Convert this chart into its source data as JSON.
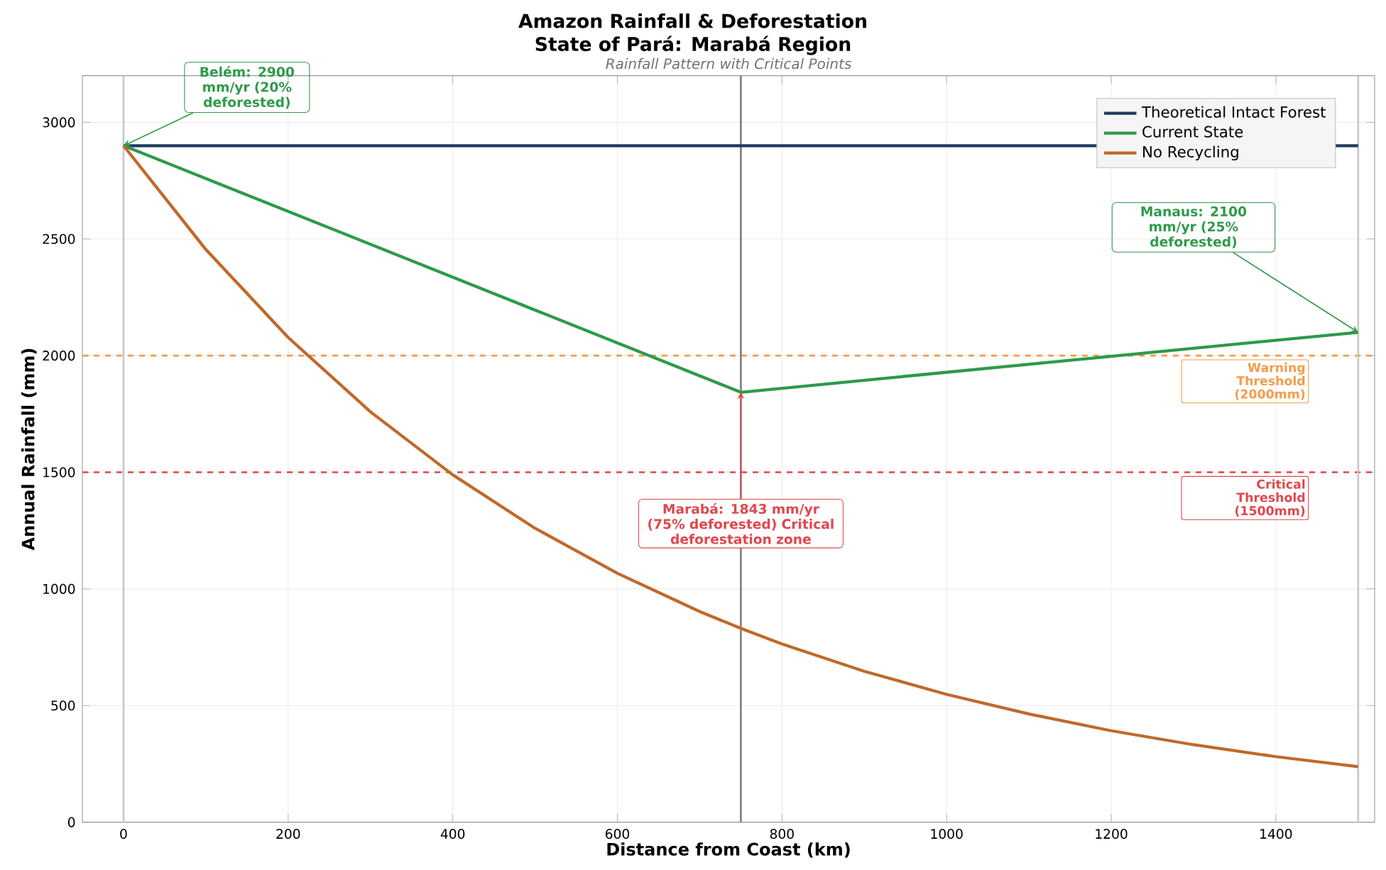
{
  "chart_data": {
    "type": "line",
    "title": "Amazon Rainfall & Deforestation",
    "subtitle": "State of Pará: Marabá Region",
    "xlabel": "Distance from Coast (km)",
    "ylabel": "Annual Rainfall (mm)",
    "annotations": [
      "Rainfall Pattern with Critical Points",
      {
        "text": "Belém: 2900 mm/yr (20% deforested)",
        "x": 0,
        "y": 2900
      },
      {
        "text": "Manaus: 2100 mm/yr (25% deforested)",
        "x": 1500,
        "y": 2100
      },
      {
        "text": "Marabá: 1843 mm/yr (75% deforested) Critical deforestation zone",
        "x": 750,
        "y": 1843
      }
    ],
    "series": [
      {
        "name": "Theoretical Intact Forest",
        "color": "#1f3a5f",
        "x": [
          0,
          1500
        ],
        "values": [
          2900,
          2900
        ]
      },
      {
        "name": "Current State",
        "color": "#2e9a4a",
        "x": [
          0,
          750,
          1500
        ],
        "values": [
          2900,
          1843,
          2100
        ]
      },
      {
        "name": "No Recycling",
        "color": "#c0692a",
        "x": [
          0,
          100,
          200,
          300,
          400,
          500,
          600,
          700,
          750,
          800,
          900,
          1000,
          1100,
          1200,
          1300,
          1400,
          1500
        ],
        "values": [
          2900,
          2455,
          2078,
          1759,
          1489,
          1260,
          1067,
          903,
          831,
          764,
          647,
          548,
          464,
          392,
          332,
          281,
          238
        ]
      }
    ],
    "ref_lines": [
      {
        "axis": "y",
        "value": 2000,
        "label": "Warning Threshold (2000mm)",
        "color": "#f39c4a",
        "line_style": "dashed"
      },
      {
        "axis": "y",
        "value": 1500,
        "label": "Critical Threshold (1500mm)",
        "color": "#e0474c",
        "line_style": "dashed"
      },
      {
        "axis": "x",
        "value": 0,
        "color": "#c8c8c8",
        "line_style": "solid"
      },
      {
        "axis": "x",
        "value": 750,
        "color": "#808080",
        "line_style": "solid"
      },
      {
        "axis": "x",
        "value": 1500,
        "color": "#c8c8c8",
        "line_style": "solid"
      }
    ],
    "xlim": [
      -50,
      1520
    ],
    "ylim": [
      0,
      3200
    ],
    "xticks": [
      0,
      200,
      400,
      600,
      800,
      1000,
      1200,
      1400
    ],
    "yticks": [
      0,
      500,
      1000,
      1500,
      2000,
      2500,
      3000
    ],
    "grid": true,
    "legend": "top right",
    "marker": "none",
    "line_style": "solid"
  }
}
